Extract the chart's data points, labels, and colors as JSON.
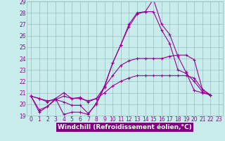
{
  "xlabel": "Windchill (Refroidissement éolien,°C)",
  "background_color": "#c8ecec",
  "grid_color": "#9bbebe",
  "line_color": "#990099",
  "xlabel_bg_color": "#800080",
  "xlabel_text_color": "#ffffff",
  "xlim": [
    -0.5,
    23.5
  ],
  "ylim": [
    19,
    29
  ],
  "xticks": [
    0,
    1,
    2,
    3,
    4,
    5,
    6,
    7,
    8,
    9,
    10,
    11,
    12,
    13,
    14,
    15,
    16,
    17,
    18,
    19,
    20,
    21,
    22,
    23
  ],
  "yticks": [
    19,
    20,
    21,
    22,
    23,
    24,
    25,
    26,
    27,
    28,
    29
  ],
  "series": [
    [
      20.7,
      19.3,
      19.8,
      20.5,
      19.1,
      19.3,
      19.3,
      19.1,
      20.1,
      21.6,
      23.6,
      25.2,
      27.0,
      28.0,
      28.1,
      29.2,
      27.0,
      26.1,
      24.2,
      22.8,
      21.2,
      21.0,
      20.8
    ],
    [
      20.7,
      19.5,
      19.8,
      20.4,
      20.2,
      19.9,
      19.9,
      19.2,
      20.0,
      21.5,
      23.6,
      25.2,
      26.8,
      27.9,
      28.1,
      28.1,
      26.5,
      25.3,
      23.0,
      22.7,
      22.0,
      21.1,
      20.8
    ],
    [
      20.7,
      20.5,
      20.2,
      20.5,
      21.0,
      20.5,
      20.6,
      20.2,
      20.5,
      21.5,
      22.5,
      23.4,
      23.8,
      24.0,
      24.0,
      24.0,
      24.0,
      24.2,
      24.3,
      24.3,
      23.9,
      21.3,
      20.8
    ],
    [
      20.7,
      20.5,
      20.3,
      20.4,
      20.7,
      20.5,
      20.5,
      20.3,
      20.5,
      21.0,
      21.6,
      22.0,
      22.3,
      22.5,
      22.5,
      22.5,
      22.5,
      22.5,
      22.5,
      22.5,
      22.3,
      21.3,
      20.8
    ]
  ],
  "tick_fontsize": 5.5,
  "xlabel_fontsize": 6.5,
  "figsize": [
    3.2,
    2.0
  ],
  "dpi": 100
}
